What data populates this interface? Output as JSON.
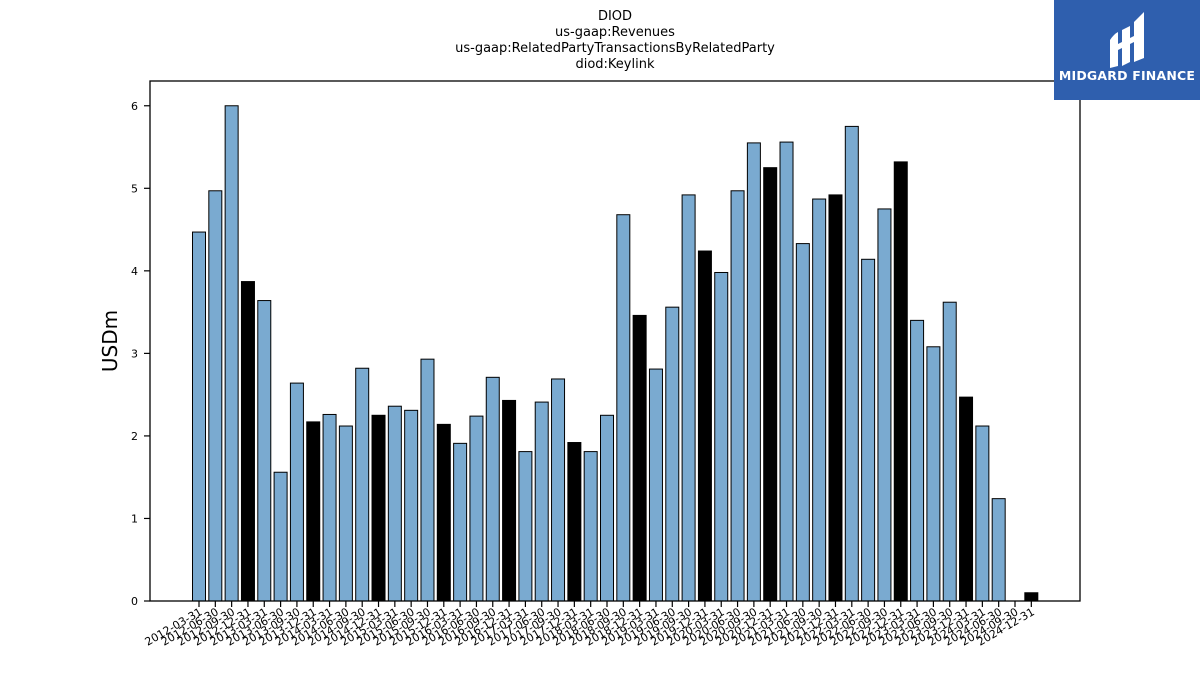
{
  "chart_data": {
    "type": "bar",
    "title_lines": [
      "DIOD",
      "us-gaap:Revenues",
      "us-gaap:RelatedPartyTransactionsByRelatedParty",
      "diod:Keylink"
    ],
    "xlabel": "",
    "ylabel": "USDm",
    "ylim": [
      0,
      6.3
    ],
    "yticks": [
      0,
      1,
      2,
      3,
      4,
      5,
      6
    ],
    "grid": false,
    "legend": "none",
    "colors": {
      "quarter": "#7aaad0",
      "year_end": "#000000",
      "edge": "#000000"
    },
    "categories": [
      "2012-03-31",
      "2012-06-30",
      "2012-09-30",
      "2012-12-31",
      "2013-03-31",
      "2013-06-30",
      "2013-09-30",
      "2013-12-31",
      "2014-03-31",
      "2014-06-30",
      "2014-09-30",
      "2014-12-31",
      "2015-03-31",
      "2015-06-30",
      "2015-09-30",
      "2015-12-31",
      "2016-03-31",
      "2016-06-30",
      "2016-09-30",
      "2016-12-31",
      "2017-03-31",
      "2017-06-30",
      "2017-09-30",
      "2017-12-31",
      "2018-03-31",
      "2018-06-30",
      "2018-09-30",
      "2018-12-31",
      "2019-03-31",
      "2019-06-30",
      "2019-09-30",
      "2019-12-31",
      "2020-03-31",
      "2020-06-30",
      "2020-09-30",
      "2020-12-31",
      "2021-03-31",
      "2021-06-30",
      "2021-09-30",
      "2021-12-31",
      "2022-03-31",
      "2022-06-30",
      "2022-09-30",
      "2022-12-31",
      "2023-03-31",
      "2023-06-30",
      "2023-09-30",
      "2023-12-31",
      "2024-03-31",
      "2024-06-30",
      "2024-09-30",
      "2024-12-31"
    ],
    "values": [
      4.47,
      4.97,
      6.0,
      3.87,
      3.64,
      1.56,
      2.64,
      2.17,
      2.26,
      2.12,
      2.82,
      2.25,
      2.36,
      2.31,
      2.93,
      2.14,
      1.91,
      2.24,
      2.71,
      2.43,
      1.81,
      2.41,
      2.69,
      1.92,
      1.81,
      2.25,
      4.68,
      3.46,
      2.81,
      3.56,
      4.92,
      4.24,
      3.98,
      4.97,
      5.55,
      5.25,
      5.56,
      4.33,
      4.87,
      4.92,
      5.75,
      4.14,
      4.75,
      5.32,
      3.4,
      3.08,
      3.62,
      2.47,
      2.12,
      1.24,
      0,
      0.1
    ],
    "highlight": [
      false,
      false,
      false,
      true,
      false,
      false,
      false,
      true,
      false,
      false,
      false,
      true,
      false,
      false,
      false,
      true,
      false,
      false,
      false,
      true,
      false,
      false,
      false,
      true,
      false,
      false,
      false,
      true,
      false,
      false,
      false,
      true,
      false,
      false,
      false,
      true,
      false,
      false,
      false,
      true,
      false,
      false,
      false,
      true,
      false,
      false,
      false,
      true,
      false,
      false,
      false,
      true
    ]
  },
  "logo": {
    "text": "MIDGARD FINANCE"
  }
}
